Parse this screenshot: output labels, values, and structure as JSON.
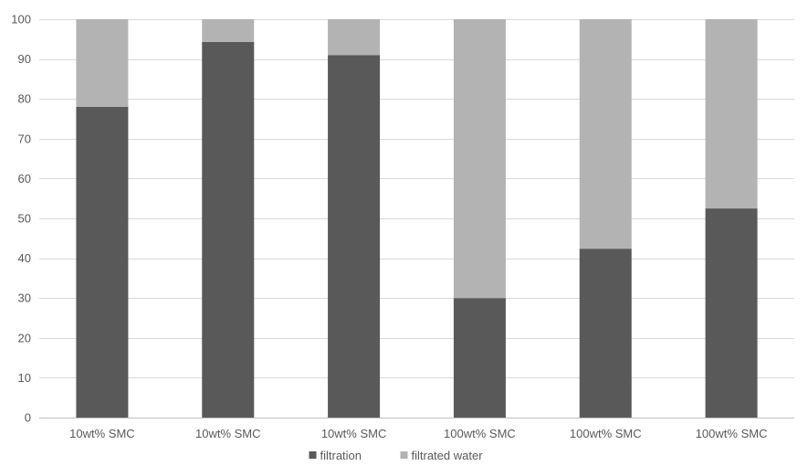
{
  "chart_data": {
    "type": "bar",
    "stacked": true,
    "categories": [
      "10wt% SMC",
      "10wt% SMC",
      "10wt% SMC",
      "100wt% SMC",
      "100wt% SMC",
      "100wt% SMC"
    ],
    "series": [
      {
        "name": "filtration",
        "values": [
          78,
          94.3,
          91,
          30,
          42.4,
          52.5
        ],
        "color": "#595959"
      },
      {
        "name": "filtrated water",
        "values": [
          22,
          5.7,
          9,
          70,
          57.6,
          47.5
        ],
        "color": "#b3b3b3"
      }
    ],
    "title": "",
    "xlabel": "",
    "ylabel": "",
    "ylim": [
      0,
      100
    ],
    "yticks": [
      0,
      10,
      20,
      30,
      40,
      50,
      60,
      70,
      80,
      90,
      100
    ],
    "grid": true,
    "legend": "bottom"
  }
}
